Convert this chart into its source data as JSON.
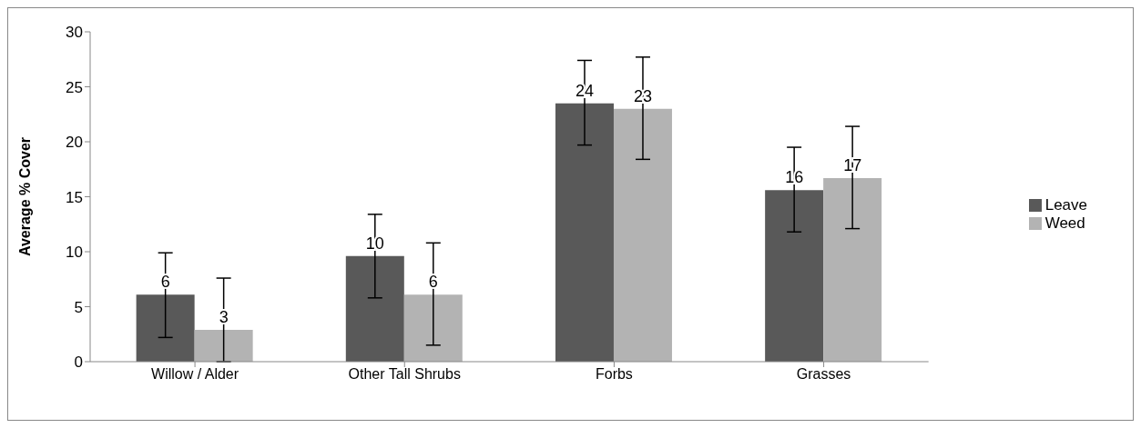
{
  "chart_data": {
    "type": "bar",
    "ylabel": "Average % Cover",
    "categories": [
      "Willow / Alder",
      "Other Tall Shrubs",
      "Forbs",
      "Grasses"
    ],
    "series": [
      {
        "name": "Leave",
        "color": "#595959",
        "values": [
          6.1,
          9.6,
          23.5,
          15.6
        ],
        "errors": [
          [
            2.2,
            9.9
          ],
          [
            5.8,
            13.4
          ],
          [
            19.7,
            27.4
          ],
          [
            11.8,
            19.5
          ]
        ],
        "value_labels": [
          "6",
          "10",
          "24",
          "16"
        ]
      },
      {
        "name": "Weed",
        "color": "#b3b3b3",
        "values": [
          2.9,
          6.1,
          23.0,
          16.7
        ],
        "errors": [
          [
            0,
            7.6
          ],
          [
            1.5,
            10.8
          ],
          [
            18.4,
            27.7
          ],
          [
            12.1,
            21.4
          ]
        ],
        "value_labels": [
          "3",
          "6",
          "23",
          "17"
        ]
      }
    ],
    "ylim": [
      0,
      30
    ],
    "yticks": [
      0,
      5,
      10,
      15,
      20,
      25,
      30
    ],
    "grid": false,
    "legend": "right"
  }
}
